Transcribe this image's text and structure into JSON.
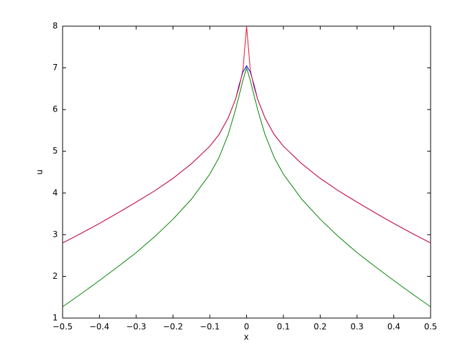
{
  "chart_data": {
    "type": "line",
    "xlabel": "x",
    "ylabel": "u",
    "x": [
      -0.5,
      -0.45,
      -0.4,
      -0.35,
      -0.3,
      -0.25,
      -0.2,
      -0.15,
      -0.1,
      -0.075,
      -0.05,
      -0.03,
      -0.02,
      -0.01,
      0,
      0.01,
      0.02,
      0.03,
      0.05,
      0.075,
      0.1,
      0.15,
      0.2,
      0.25,
      0.3,
      0.35,
      0.4,
      0.45,
      0.5
    ],
    "series": [
      {
        "color": "#008000",
        "values": [
          1.27,
          1.58,
          1.9,
          2.23,
          2.57,
          2.95,
          3.37,
          3.85,
          4.45,
          4.85,
          5.4,
          6.0,
          6.35,
          6.7,
          7.0,
          6.7,
          6.35,
          6.0,
          5.4,
          4.85,
          4.45,
          3.85,
          3.37,
          2.95,
          2.57,
          2.23,
          1.9,
          1.58,
          1.27
        ]
      },
      {
        "color": "#0000ff",
        "values": [
          2.8,
          3.03,
          3.27,
          3.52,
          3.78,
          4.05,
          4.35,
          4.7,
          5.12,
          5.4,
          5.8,
          6.25,
          6.6,
          6.9,
          7.05,
          6.9,
          6.6,
          6.25,
          5.8,
          5.4,
          5.12,
          4.7,
          4.35,
          4.05,
          3.78,
          3.52,
          3.27,
          3.03,
          2.8
        ]
      },
      {
        "color": "#e0102a",
        "values": [
          2.8,
          3.03,
          3.27,
          3.52,
          3.78,
          4.05,
          4.35,
          4.7,
          5.12,
          5.4,
          5.8,
          6.25,
          6.55,
          6.95,
          8,
          6.95,
          6.55,
          6.25,
          5.8,
          5.4,
          5.12,
          4.7,
          4.35,
          4.05,
          3.78,
          3.52,
          3.27,
          3.03,
          2.8
        ]
      }
    ],
    "xlim": [
      -0.5,
      0.5
    ],
    "xticks": [
      {
        "value": -0.5,
        "label": "−0.5"
      },
      {
        "value": -0.4,
        "label": "−0.4"
      },
      {
        "value": -0.3,
        "label": "−0.3"
      },
      {
        "value": -0.2,
        "label": "−0.2"
      },
      {
        "value": -0.1,
        "label": "−0.1"
      },
      0,
      0.1,
      0.2,
      0.3,
      0.4,
      0.5
    ],
    "ylim": [
      1,
      8
    ],
    "yticks": [
      1,
      2,
      3,
      4,
      5,
      6,
      7,
      8
    ]
  }
}
